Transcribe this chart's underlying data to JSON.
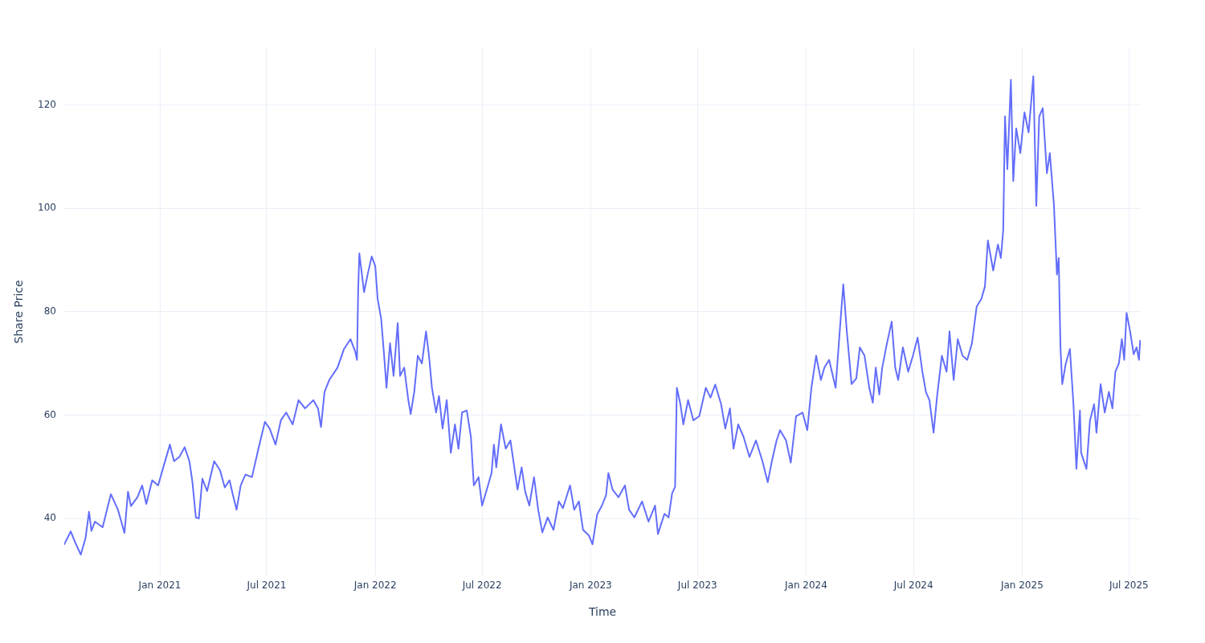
{
  "chart_data": {
    "type": "line",
    "xlabel": "Time",
    "ylabel": "Share Price",
    "grid": true,
    "xlim": [
      "2020-07-23",
      "2025-07-21"
    ],
    "xticks": [
      {
        "value": "2021-01-01",
        "label": "Jan 2021"
      },
      {
        "value": "2021-07-01",
        "label": "Jul 2021"
      },
      {
        "value": "2022-01-01",
        "label": "Jan 2022"
      },
      {
        "value": "2022-07-01",
        "label": "Jul 2022"
      },
      {
        "value": "2023-01-01",
        "label": "Jan 2023"
      },
      {
        "value": "2023-07-01",
        "label": "Jul 2023"
      },
      {
        "value": "2024-01-01",
        "label": "Jan 2024"
      },
      {
        "value": "2024-07-01",
        "label": "Jul 2024"
      },
      {
        "value": "2025-01-01",
        "label": "Jan 2025"
      },
      {
        "value": "2025-07-01",
        "label": "Jul 2025"
      }
    ],
    "ylim": [
      29,
      131
    ],
    "yticks": [
      40,
      60,
      80,
      100,
      120
    ],
    "series": [
      {
        "color": "#636efa",
        "x": [
          "2020-07-23",
          "2020-08-03",
          "2020-08-10",
          "2020-08-20",
          "2020-08-28",
          "2020-09-03",
          "2020-09-07",
          "2020-09-13",
          "2020-09-26",
          "2020-10-10",
          "2020-10-22",
          "2020-11-02",
          "2020-11-08",
          "2020-11-13",
          "2020-11-24",
          "2020-12-02",
          "2020-12-09",
          "2020-12-19",
          "2020-12-29",
          "2021-01-06",
          "2021-01-18",
          "2021-01-25",
          "2021-02-03",
          "2021-02-12",
          "2021-02-20",
          "2021-02-25",
          "2021-03-03",
          "2021-03-08",
          "2021-03-14",
          "2021-03-22",
          "2021-04-03",
          "2021-04-13",
          "2021-04-21",
          "2021-04-29",
          "2021-05-04",
          "2021-05-11",
          "2021-05-18",
          "2021-05-26",
          "2021-06-06",
          "2021-06-17",
          "2021-06-28",
          "2021-07-06",
          "2021-07-16",
          "2021-07-25",
          "2021-08-03",
          "2021-08-14",
          "2021-08-24",
          "2021-09-04",
          "2021-09-18",
          "2021-09-26",
          "2021-10-01",
          "2021-10-07",
          "2021-10-15",
          "2021-10-29",
          "2021-11-09",
          "2021-11-20",
          "2021-11-28",
          "2021-12-01",
          "2021-12-03",
          "2021-12-05",
          "2021-12-13",
          "2021-12-19",
          "2021-12-26",
          "2022-01-01",
          "2022-01-05",
          "2022-01-11",
          "2022-01-16",
          "2022-01-20",
          "2022-01-26",
          "2022-02-01",
          "2022-02-08",
          "2022-02-12",
          "2022-02-19",
          "2022-02-26",
          "2022-03-02",
          "2022-03-08",
          "2022-03-14",
          "2022-03-21",
          "2022-03-28",
          "2022-04-02",
          "2022-04-07",
          "2022-04-14",
          "2022-04-19",
          "2022-04-25",
          "2022-05-02",
          "2022-05-09",
          "2022-05-16",
          "2022-05-22",
          "2022-05-28",
          "2022-06-05",
          "2022-06-12",
          "2022-06-17",
          "2022-06-25",
          "2022-07-01",
          "2022-07-09",
          "2022-07-17",
          "2022-07-21",
          "2022-07-25",
          "2022-08-02",
          "2022-08-10",
          "2022-08-18",
          "2022-08-23",
          "2022-08-30",
          "2022-09-06",
          "2022-09-12",
          "2022-09-19",
          "2022-09-27",
          "2022-10-04",
          "2022-10-11",
          "2022-10-20",
          "2022-10-30",
          "2022-11-08",
          "2022-11-15",
          "2022-11-27",
          "2022-12-04",
          "2022-12-12",
          "2022-12-19",
          "2022-12-29",
          "2023-01-04",
          "2023-01-12",
          "2023-01-20",
          "2023-01-27",
          "2023-01-31",
          "2023-02-07",
          "2023-02-17",
          "2023-02-28",
          "2023-03-07",
          "2023-03-16",
          "2023-03-29",
          "2023-04-09",
          "2023-04-20",
          "2023-04-25",
          "2023-05-06",
          "2023-05-13",
          "2023-05-19",
          "2023-05-24",
          "2023-05-27",
          "2023-06-02",
          "2023-06-07",
          "2023-06-15",
          "2023-06-24",
          "2023-07-04",
          "2023-07-15",
          "2023-07-23",
          "2023-07-31",
          "2023-08-10",
          "2023-08-17",
          "2023-08-25",
          "2023-08-31",
          "2023-09-08",
          "2023-09-17",
          "2023-09-27",
          "2023-10-08",
          "2023-10-19",
          "2023-10-28",
          "2023-11-04",
          "2023-11-12",
          "2023-11-18",
          "2023-11-28",
          "2023-12-06",
          "2023-12-15",
          "2023-12-26",
          "2024-01-03",
          "2024-01-10",
          "2024-01-18",
          "2024-01-26",
          "2024-02-01",
          "2024-02-09",
          "2024-02-20",
          "2024-02-28",
          "2024-03-04",
          "2024-03-10",
          "2024-03-18",
          "2024-03-26",
          "2024-04-01",
          "2024-04-09",
          "2024-04-17",
          "2024-04-23",
          "2024-04-28",
          "2024-05-04",
          "2024-05-09",
          "2024-05-17",
          "2024-05-25",
          "2024-05-31",
          "2024-06-05",
          "2024-06-13",
          "2024-06-22",
          "2024-06-30",
          "2024-07-08",
          "2024-07-16",
          "2024-07-22",
          "2024-07-28",
          "2024-08-04",
          "2024-08-10",
          "2024-08-18",
          "2024-08-26",
          "2024-08-31",
          "2024-09-07",
          "2024-09-14",
          "2024-09-22",
          "2024-09-30",
          "2024-10-08",
          "2024-10-16",
          "2024-10-24",
          "2024-10-30",
          "2024-11-04",
          "2024-11-13",
          "2024-11-21",
          "2024-11-26",
          "2024-11-30",
          "2024-12-03",
          "2024-12-07",
          "2024-12-13",
          "2024-12-17",
          "2024-12-22",
          "2024-12-29",
          "2025-01-05",
          "2025-01-12",
          "2025-01-20",
          "2025-01-25",
          "2025-01-30",
          "2025-02-05",
          "2025-02-12",
          "2025-02-17",
          "2025-02-24",
          "2025-03-01",
          "2025-03-04",
          "2025-03-07",
          "2025-03-10",
          "2025-03-16",
          "2025-03-23",
          "2025-03-29",
          "2025-04-03",
          "2025-04-09",
          "2025-04-11",
          "2025-04-20",
          "2025-04-26",
          "2025-05-03",
          "2025-05-07",
          "2025-05-14",
          "2025-05-21",
          "2025-05-28",
          "2025-06-03",
          "2025-06-08",
          "2025-06-14",
          "2025-06-19",
          "2025-06-23",
          "2025-06-27",
          "2025-07-03",
          "2025-07-09",
          "2025-07-14",
          "2025-07-18",
          "2025-07-20"
        ],
        "values": [
          35.0,
          37.5,
          35.5,
          33.0,
          36.2,
          41.3,
          37.6,
          39.4,
          38.3,
          44.7,
          41.7,
          37.2,
          45.2,
          42.4,
          44.1,
          46.4,
          42.8,
          47.4,
          46.4,
          49.6,
          54.3,
          51.1,
          51.9,
          53.8,
          51.1,
          47.2,
          40.2,
          40.0,
          47.7,
          45.3,
          51.1,
          49.3,
          46.0,
          47.4,
          44.9,
          41.7,
          46.4,
          48.5,
          48.0,
          53.5,
          58.7,
          57.4,
          54.3,
          59.0,
          60.5,
          58.2,
          62.9,
          61.3,
          62.9,
          61.3,
          57.7,
          64.5,
          66.8,
          69.2,
          72.8,
          74.7,
          72.3,
          70.7,
          84.1,
          91.3,
          83.8,
          87.2,
          90.7,
          88.8,
          82.5,
          78.6,
          71.5,
          65.3,
          73.9,
          67.6,
          77.8,
          67.6,
          69.2,
          62.9,
          60.2,
          64.5,
          71.5,
          70.0,
          76.2,
          71.5,
          65.3,
          60.5,
          63.7,
          57.4,
          62.9,
          52.7,
          58.2,
          53.5,
          60.5,
          60.9,
          55.8,
          46.4,
          48.0,
          42.5,
          45.6,
          48.8,
          54.3,
          49.9,
          58.2,
          53.5,
          55.1,
          51.1,
          45.6,
          49.9,
          45.2,
          42.5,
          48.0,
          41.7,
          37.3,
          40.2,
          37.8,
          43.3,
          42.0,
          46.4,
          41.7,
          43.3,
          37.8,
          36.7,
          35.0,
          40.8,
          42.5,
          44.5,
          48.8,
          45.6,
          44.1,
          46.4,
          41.7,
          40.2,
          43.3,
          39.4,
          42.5,
          37.0,
          40.9,
          40.2,
          44.9,
          46.1,
          65.3,
          62.1,
          58.2,
          62.9,
          59.0,
          59.8,
          65.3,
          63.4,
          65.9,
          62.1,
          57.4,
          61.3,
          53.5,
          58.2,
          55.8,
          51.9,
          55.1,
          51.1,
          47.0,
          51.1,
          55.1,
          57.1,
          55.1,
          50.8,
          59.8,
          60.5,
          57.1,
          65.3,
          71.5,
          66.8,
          69.2,
          70.7,
          65.3,
          77.8,
          85.3,
          76.2,
          66.0,
          67.1,
          73.1,
          71.5,
          65.3,
          62.4,
          69.2,
          64.0,
          69.2,
          73.9,
          78.1,
          69.2,
          66.8,
          73.1,
          68.4,
          71.5,
          75.0,
          68.4,
          64.5,
          62.9,
          56.6,
          63.7,
          71.5,
          68.4,
          76.2,
          66.8,
          74.7,
          71.5,
          70.7,
          73.9,
          81.0,
          82.5,
          84.9,
          93.8,
          88.0,
          93.0,
          90.4,
          95.8,
          117.8,
          107.6,
          124.9,
          105.3,
          115.5,
          110.7,
          118.6,
          114.7,
          125.6,
          100.5,
          117.8,
          119.4,
          106.8,
          110.7,
          100.5,
          87.2,
          90.4,
          73.1,
          66.0,
          70.0,
          72.8,
          62.1,
          49.6,
          60.9,
          52.7,
          49.6,
          59.0,
          62.1,
          56.6,
          66.0,
          60.5,
          64.5,
          61.3,
          68.4,
          70.0,
          74.7,
          70.7,
          79.8,
          76.2,
          71.8,
          73.1,
          70.7,
          74.4
        ]
      }
    ]
  }
}
